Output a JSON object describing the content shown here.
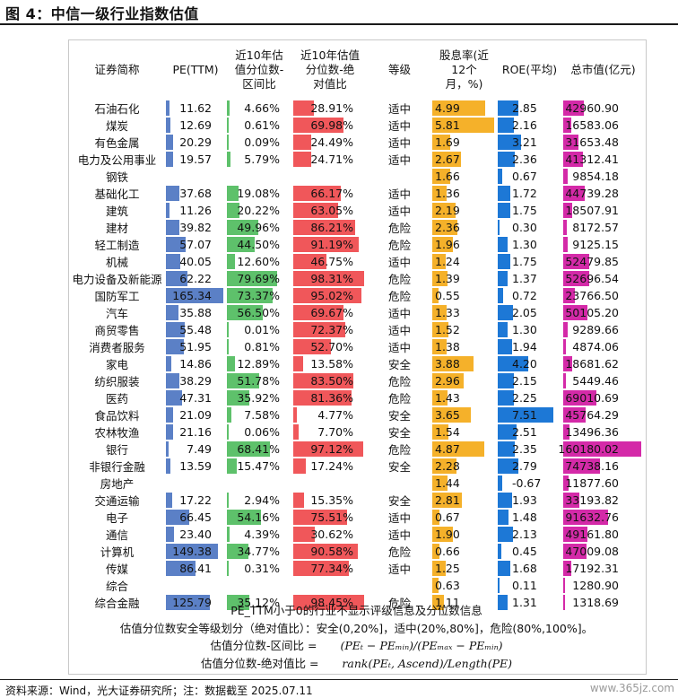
{
  "title": "图 4：中信一级行业指数估值",
  "headers": {
    "name": "证券简称",
    "pe": "PE(TTM)",
    "interval": "近10年估\n值分位数-\n区间比",
    "absolute": "近10年估值\n分位数-绝\n对值比",
    "grade": "等级",
    "dividend": "股息率(近\n12个\n月，%)",
    "roe": "ROE(平均)",
    "mktcap": "总市值(亿元)"
  },
  "colors": {
    "pe": "#5b80c6",
    "interval": "#5ec16b",
    "absolute": "#f0575a",
    "dividend": "#f5b12a",
    "roe": "#1d78d6",
    "mktcap": "#d42aa8"
  },
  "rows": [
    {
      "name": "石油石化",
      "pe": "11.62",
      "pe_v": 11.62,
      "interval": "4.66%",
      "interval_v": 4.66,
      "absolute": "28.91%",
      "absolute_v": 28.91,
      "grade": "适中",
      "dividend": "4.99",
      "dividend_v": 4.99,
      "roe": "2.85",
      "roe_v": 2.85,
      "mktcap": "42960.90",
      "mktcap_v": 42960.9
    },
    {
      "name": "煤炭",
      "pe": "12.69",
      "pe_v": 12.69,
      "interval": "0.61%",
      "interval_v": 0.61,
      "absolute": "69.98%",
      "absolute_v": 69.98,
      "grade": "适中",
      "dividend": "5.81",
      "dividend_v": 5.81,
      "roe": "2.16",
      "roe_v": 2.16,
      "mktcap": "16583.06",
      "mktcap_v": 16583.06
    },
    {
      "name": "有色金属",
      "pe": "20.29",
      "pe_v": 20.29,
      "interval": "0.09%",
      "interval_v": 0.09,
      "absolute": "24.49%",
      "absolute_v": 24.49,
      "grade": "适中",
      "dividend": "1.69",
      "dividend_v": 1.69,
      "roe": "3.21",
      "roe_v": 3.21,
      "mktcap": "31653.48",
      "mktcap_v": 31653.48
    },
    {
      "name": "电力及公用事业",
      "pe": "19.57",
      "pe_v": 19.57,
      "interval": "5.79%",
      "interval_v": 5.79,
      "absolute": "24.71%",
      "absolute_v": 24.71,
      "grade": "适中",
      "dividend": "2.67",
      "dividend_v": 2.67,
      "roe": "2.36",
      "roe_v": 2.36,
      "mktcap": "41312.41",
      "mktcap_v": 41312.41
    },
    {
      "name": "钢铁",
      "pe": "",
      "pe_v": 0,
      "interval": "",
      "interval_v": 0,
      "absolute": "",
      "absolute_v": 0,
      "grade": "",
      "dividend": "1.66",
      "dividend_v": 1.66,
      "roe": "0.67",
      "roe_v": 0.67,
      "mktcap": "9854.18",
      "mktcap_v": 9854.18
    },
    {
      "name": "基础化工",
      "pe": "37.68",
      "pe_v": 37.68,
      "interval": "19.08%",
      "interval_v": 19.08,
      "absolute": "66.17%",
      "absolute_v": 66.17,
      "grade": "适中",
      "dividend": "1.36",
      "dividend_v": 1.36,
      "roe": "1.72",
      "roe_v": 1.72,
      "mktcap": "44739.28",
      "mktcap_v": 44739.28
    },
    {
      "name": "建筑",
      "pe": "11.26",
      "pe_v": 11.26,
      "interval": "20.22%",
      "interval_v": 20.22,
      "absolute": "63.05%",
      "absolute_v": 63.05,
      "grade": "适中",
      "dividend": "2.19",
      "dividend_v": 2.19,
      "roe": "1.75",
      "roe_v": 1.75,
      "mktcap": "18507.91",
      "mktcap_v": 18507.91
    },
    {
      "name": "建材",
      "pe": "39.82",
      "pe_v": 39.82,
      "interval": "49.96%",
      "interval_v": 49.96,
      "absolute": "86.21%",
      "absolute_v": 86.21,
      "grade": "危险",
      "dividend": "2.36",
      "dividend_v": 2.36,
      "roe": "0.30",
      "roe_v": 0.3,
      "mktcap": "8172.57",
      "mktcap_v": 8172.57
    },
    {
      "name": "轻工制造",
      "pe": "57.07",
      "pe_v": 57.07,
      "interval": "44.50%",
      "interval_v": 44.5,
      "absolute": "91.19%",
      "absolute_v": 91.19,
      "grade": "危险",
      "dividend": "1.96",
      "dividend_v": 1.96,
      "roe": "1.30",
      "roe_v": 1.3,
      "mktcap": "9125.15",
      "mktcap_v": 9125.15
    },
    {
      "name": "机械",
      "pe": "40.05",
      "pe_v": 40.05,
      "interval": "12.60%",
      "interval_v": 12.6,
      "absolute": "46.75%",
      "absolute_v": 46.75,
      "grade": "适中",
      "dividend": "1.24",
      "dividend_v": 1.24,
      "roe": "1.75",
      "roe_v": 1.75,
      "mktcap": "52479.85",
      "mktcap_v": 52479.85
    },
    {
      "name": "电力设备及新能源",
      "pe": "62.22",
      "pe_v": 62.22,
      "interval": "79.69%",
      "interval_v": 79.69,
      "absolute": "98.31%",
      "absolute_v": 98.31,
      "grade": "危险",
      "dividend": "1.39",
      "dividend_v": 1.39,
      "roe": "1.37",
      "roe_v": 1.37,
      "mktcap": "52696.54",
      "mktcap_v": 52696.54
    },
    {
      "name": "国防军工",
      "pe": "165.34",
      "pe_v": 165.34,
      "interval": "73.37%",
      "interval_v": 73.37,
      "absolute": "95.02%",
      "absolute_v": 95.02,
      "grade": "危险",
      "dividend": "0.55",
      "dividend_v": 0.55,
      "roe": "0.72",
      "roe_v": 0.72,
      "mktcap": "23766.50",
      "mktcap_v": 23766.5
    },
    {
      "name": "汽车",
      "pe": "35.88",
      "pe_v": 35.88,
      "interval": "56.50%",
      "interval_v": 56.5,
      "absolute": "69.67%",
      "absolute_v": 69.67,
      "grade": "适中",
      "dividend": "1.33",
      "dividend_v": 1.33,
      "roe": "2.05",
      "roe_v": 2.05,
      "mktcap": "50105.20",
      "mktcap_v": 50105.2
    },
    {
      "name": "商贸零售",
      "pe": "55.48",
      "pe_v": 55.48,
      "interval": "0.01%",
      "interval_v": 0.01,
      "absolute": "72.37%",
      "absolute_v": 72.37,
      "grade": "适中",
      "dividend": "1.52",
      "dividend_v": 1.52,
      "roe": "1.30",
      "roe_v": 1.3,
      "mktcap": "9289.66",
      "mktcap_v": 9289.66
    },
    {
      "name": "消费者服务",
      "pe": "51.95",
      "pe_v": 51.95,
      "interval": "0.81%",
      "interval_v": 0.81,
      "absolute": "52.70%",
      "absolute_v": 52.7,
      "grade": "适中",
      "dividend": "1.38",
      "dividend_v": 1.38,
      "roe": "1.94",
      "roe_v": 1.94,
      "mktcap": "4874.06",
      "mktcap_v": 4874.06
    },
    {
      "name": "家电",
      "pe": "14.86",
      "pe_v": 14.86,
      "interval": "12.89%",
      "interval_v": 12.89,
      "absolute": "13.58%",
      "absolute_v": 13.58,
      "grade": "安全",
      "dividend": "3.88",
      "dividend_v": 3.88,
      "roe": "4.20",
      "roe_v": 4.2,
      "mktcap": "18681.62",
      "mktcap_v": 18681.62
    },
    {
      "name": "纺织服装",
      "pe": "38.29",
      "pe_v": 38.29,
      "interval": "51.78%",
      "interval_v": 51.78,
      "absolute": "83.50%",
      "absolute_v": 83.5,
      "grade": "危险",
      "dividend": "2.96",
      "dividend_v": 2.96,
      "roe": "2.15",
      "roe_v": 2.15,
      "mktcap": "5449.46",
      "mktcap_v": 5449.46
    },
    {
      "name": "医药",
      "pe": "47.31",
      "pe_v": 47.31,
      "interval": "35.92%",
      "interval_v": 35.92,
      "absolute": "81.36%",
      "absolute_v": 81.36,
      "grade": "危险",
      "dividend": "1.43",
      "dividend_v": 1.43,
      "roe": "2.25",
      "roe_v": 2.25,
      "mktcap": "69010.69",
      "mktcap_v": 69010.69
    },
    {
      "name": "食品饮料",
      "pe": "21.09",
      "pe_v": 21.09,
      "interval": "7.58%",
      "interval_v": 7.58,
      "absolute": "4.77%",
      "absolute_v": 4.77,
      "grade": "安全",
      "dividend": "3.65",
      "dividend_v": 3.65,
      "roe": "7.51",
      "roe_v": 7.51,
      "mktcap": "45764.29",
      "mktcap_v": 45764.29
    },
    {
      "name": "农林牧渔",
      "pe": "21.16",
      "pe_v": 21.16,
      "interval": "0.06%",
      "interval_v": 0.06,
      "absolute": "7.70%",
      "absolute_v": 7.7,
      "grade": "安全",
      "dividend": "1.54",
      "dividend_v": 1.54,
      "roe": "2.51",
      "roe_v": 2.51,
      "mktcap": "13496.36",
      "mktcap_v": 13496.36
    },
    {
      "name": "银行",
      "pe": "7.49",
      "pe_v": 7.49,
      "interval": "68.41%",
      "interval_v": 68.41,
      "absolute": "97.12%",
      "absolute_v": 97.12,
      "grade": "危险",
      "dividend": "4.87",
      "dividend_v": 4.87,
      "roe": "2.35",
      "roe_v": 2.35,
      "mktcap": "160180.02",
      "mktcap_v": 160180.02
    },
    {
      "name": "非银行金融",
      "pe": "13.59",
      "pe_v": 13.59,
      "interval": "15.47%",
      "interval_v": 15.47,
      "absolute": "17.24%",
      "absolute_v": 17.24,
      "grade": "安全",
      "dividend": "2.28",
      "dividend_v": 2.28,
      "roe": "2.79",
      "roe_v": 2.79,
      "mktcap": "74738.16",
      "mktcap_v": 74738.16
    },
    {
      "name": "房地产",
      "pe": "",
      "pe_v": 0,
      "interval": "",
      "interval_v": 0,
      "absolute": "",
      "absolute_v": 0,
      "grade": "",
      "dividend": "1.44",
      "dividend_v": 1.44,
      "roe": "-0.67",
      "roe_v": -0.67,
      "mktcap": "11877.60",
      "mktcap_v": 11877.6
    },
    {
      "name": "交通运输",
      "pe": "17.22",
      "pe_v": 17.22,
      "interval": "2.94%",
      "interval_v": 2.94,
      "absolute": "15.35%",
      "absolute_v": 15.35,
      "grade": "安全",
      "dividend": "2.81",
      "dividend_v": 2.81,
      "roe": "1.93",
      "roe_v": 1.93,
      "mktcap": "33193.82",
      "mktcap_v": 33193.82
    },
    {
      "name": "电子",
      "pe": "66.45",
      "pe_v": 66.45,
      "interval": "54.16%",
      "interval_v": 54.16,
      "absolute": "75.51%",
      "absolute_v": 75.51,
      "grade": "适中",
      "dividend": "0.67",
      "dividend_v": 0.67,
      "roe": "1.48",
      "roe_v": 1.48,
      "mktcap": "91632.76",
      "mktcap_v": 91632.76
    },
    {
      "name": "通信",
      "pe": "23.40",
      "pe_v": 23.4,
      "interval": "4.39%",
      "interval_v": 4.39,
      "absolute": "30.62%",
      "absolute_v": 30.62,
      "grade": "适中",
      "dividend": "1.90",
      "dividend_v": 1.9,
      "roe": "2.13",
      "roe_v": 2.13,
      "mktcap": "49161.80",
      "mktcap_v": 49161.8
    },
    {
      "name": "计算机",
      "pe": "149.38",
      "pe_v": 149.38,
      "interval": "34.77%",
      "interval_v": 34.77,
      "absolute": "90.58%",
      "absolute_v": 90.58,
      "grade": "危险",
      "dividend": "0.66",
      "dividend_v": 0.66,
      "roe": "0.45",
      "roe_v": 0.45,
      "mktcap": "47009.08",
      "mktcap_v": 47009.08
    },
    {
      "name": "传媒",
      "pe": "86.41",
      "pe_v": 86.41,
      "interval": "0.31%",
      "interval_v": 0.31,
      "absolute": "77.34%",
      "absolute_v": 77.34,
      "grade": "适中",
      "dividend": "1.25",
      "dividend_v": 1.25,
      "roe": "1.68",
      "roe_v": 1.68,
      "mktcap": "17192.31",
      "mktcap_v": 17192.31
    },
    {
      "name": "综合",
      "pe": "",
      "pe_v": 0,
      "interval": "",
      "interval_v": 0,
      "absolute": "",
      "absolute_v": 0,
      "grade": "",
      "dividend": "0.63",
      "dividend_v": 0.63,
      "roe": "0.11",
      "roe_v": 0.11,
      "mktcap": "1280.90",
      "mktcap_v": 1280.9
    },
    {
      "name": "综合金融",
      "pe": "125.79",
      "pe_v": 125.79,
      "interval": "35.12%",
      "interval_v": 35.12,
      "absolute": "98.45%",
      "absolute_v": 98.45,
      "grade": "危险",
      "dividend": "1.11",
      "dividend_v": 1.11,
      "roe": "1.31",
      "roe_v": 1.31,
      "mktcap": "1318.69",
      "mktcap_v": 1318.69
    }
  ],
  "scales": {
    "pe_max": 165.34,
    "interval_max": 100,
    "absolute_max": 100,
    "dividend_max": 5.81,
    "roe_max": 7.51,
    "mktcap_max": 160180.02
  },
  "notes": {
    "n1": "PE_TTM小于0的行业不显示评级信息及分位数信息",
    "n2": "估值分位数安全等级划分（绝对值比）：安全(0,20%]，适中(20%,80%]，危险(80%,100%]。",
    "n3_label": "估值分位数-区间比 =",
    "n3_formula": "(PEₜ − PEₘᵢₙ)/(PEₘₐₓ − PEₘᵢₙ)",
    "n4_label": "估值分位数-绝对值比 =",
    "n4_formula": "rank(PEₜ, Ascend)/Length(PE)"
  },
  "source": "资料来源：Wind，光大证券研究所；注：数据截至 2025.07.11",
  "watermark": "www.365jz.com"
}
